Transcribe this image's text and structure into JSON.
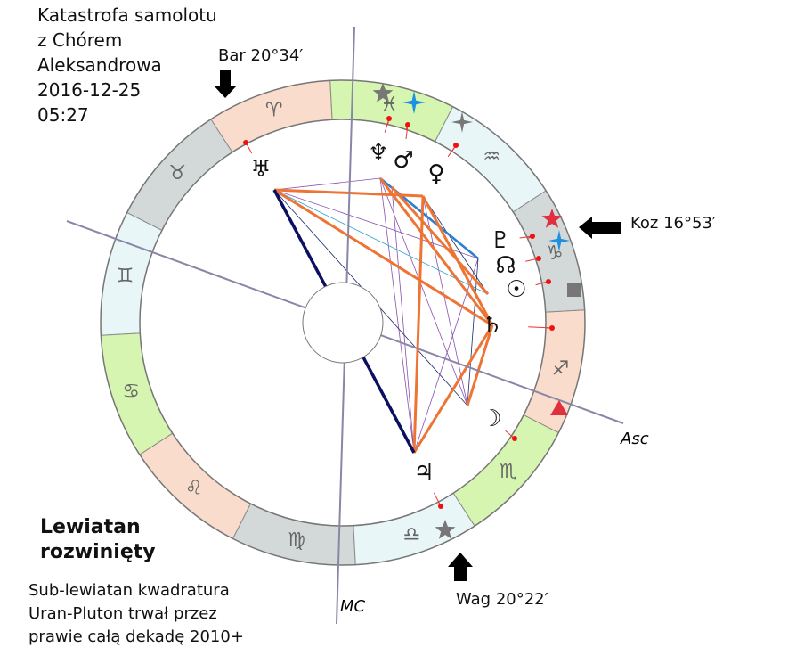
{
  "title_lines": [
    "Katastrofa samolotu",
    "z Chórem",
    "Aleksandrowa",
    "2016-12-25",
    "05:27"
  ],
  "markers": {
    "aries_point": "Bar 20°34′",
    "capricorn_point": "Koz 16°53′",
    "libra_point": "Wag 20°22′"
  },
  "axes": {
    "asc": "Asc",
    "mc": "MC"
  },
  "heading": [
    "Lewiatan",
    "rozwinięty"
  ],
  "note": [
    "Sub-lewiatan kwadratura",
    "Uran-Pluton trwał przez",
    "prawie całą dekadę 2010+"
  ],
  "signs": [
    "♈",
    "♉",
    "♊",
    "♋",
    "♌",
    "♍",
    "♎",
    "♏",
    "♐",
    "♑",
    "♒",
    "♓"
  ],
  "planets": [
    "♅",
    "♆",
    "♂",
    "♀",
    "♇",
    "☊",
    "☉",
    "♄",
    "☽",
    "♃"
  ]
}
